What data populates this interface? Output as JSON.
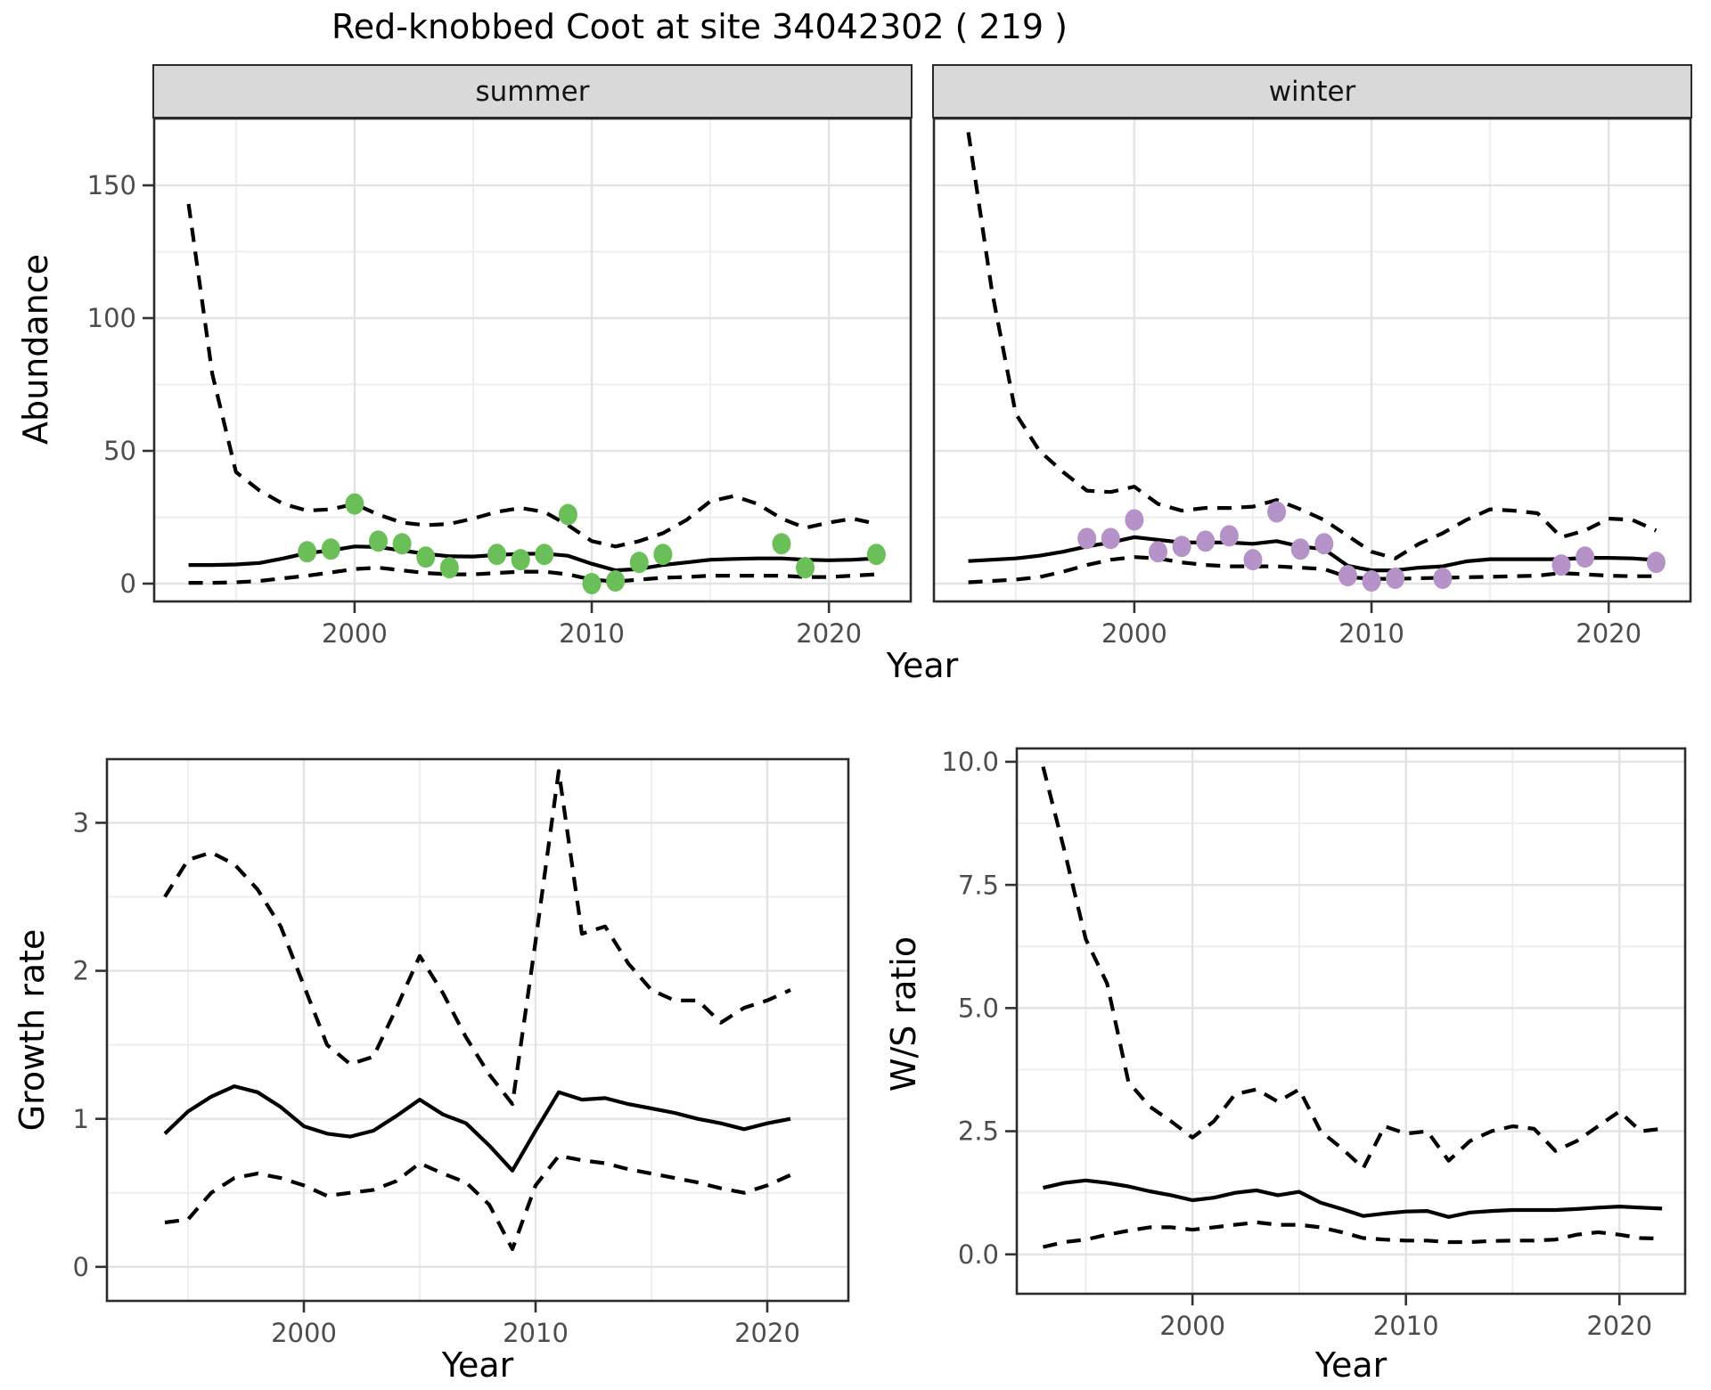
{
  "title": "Red-knobbed Coot at site 34042302 ( 219 )",
  "facets": [
    {
      "label": "summer"
    },
    {
      "label": "winter"
    }
  ],
  "axes": {
    "abundance_y_label": "Abundance",
    "top_x_label": "Year",
    "growth_y_label": "Growth rate",
    "growth_x_label": "Year",
    "ws_y_label": "W/S ratio",
    "ws_x_label": "Year"
  },
  "colors": {
    "summer_points": "#6bbf59",
    "winter_points": "#b592c8",
    "line": "#000000",
    "panel_border": "#2b2b2b",
    "grid_major": "#e3e3e3",
    "grid_minor": "#eeeeee",
    "strip_bg": "#d9d9d9",
    "tick_text": "#4d4d4d"
  },
  "chart_data": [
    {
      "id": "abundance_summer",
      "type": "line",
      "facet": "summer",
      "x_label": "Year",
      "y_label": "Abundance",
      "years": [
        1993,
        1994,
        1995,
        1996,
        1997,
        1998,
        1999,
        2000,
        2001,
        2002,
        2003,
        2004,
        2005,
        2006,
        2007,
        2008,
        2009,
        2010,
        2011,
        2012,
        2013,
        2014,
        2015,
        2016,
        2017,
        2018,
        2019,
        2020,
        2021,
        2022
      ],
      "series": [
        {
          "name": "upper_95ci",
          "style": "dashed",
          "values": [
            143,
            79,
            42,
            35,
            30,
            27.5,
            28,
            30,
            26,
            23,
            22,
            22.5,
            24.5,
            27,
            28.5,
            27,
            22,
            16,
            14,
            16,
            19,
            24,
            31,
            33,
            30,
            24.5,
            21,
            23,
            24.5,
            22.5
          ]
        },
        {
          "name": "mean",
          "style": "solid",
          "values": [
            7,
            7,
            7.2,
            7.8,
            9.5,
            11.5,
            12.5,
            14,
            13.8,
            12.5,
            11.2,
            10.3,
            10.2,
            10.8,
            11.2,
            11.3,
            10.5,
            7.5,
            5,
            5.5,
            7,
            8,
            9,
            9.3,
            9.5,
            9.5,
            9,
            8.8,
            9,
            9.5
          ]
        },
        {
          "name": "lower_95ci",
          "style": "dashed",
          "values": [
            0.3,
            0.3,
            0.5,
            1,
            2,
            3,
            4.2,
            5.5,
            6,
            5,
            4,
            3.5,
            3.5,
            4,
            4.5,
            4.5,
            3.5,
            1.5,
            0.8,
            1.5,
            2.2,
            2.5,
            3,
            3,
            3,
            3,
            2.5,
            2.5,
            3,
            3.5
          ]
        }
      ],
      "points": {
        "name": "observed_counts",
        "color": "#6bbf59",
        "data": [
          [
            1998,
            12
          ],
          [
            1999,
            13
          ],
          [
            2000,
            30
          ],
          [
            2001,
            16
          ],
          [
            2002,
            15
          ],
          [
            2003,
            10
          ],
          [
            2004,
            6
          ],
          [
            2006,
            11
          ],
          [
            2007,
            9
          ],
          [
            2008,
            11
          ],
          [
            2009,
            26
          ],
          [
            2010,
            0
          ],
          [
            2011,
            1
          ],
          [
            2012,
            8
          ],
          [
            2013,
            11
          ],
          [
            2018,
            15
          ],
          [
            2019,
            6
          ],
          [
            2022,
            11
          ]
        ]
      },
      "x_ticks": [
        {
          "v": 2000,
          "label": "2000"
        },
        {
          "v": 2010,
          "label": "2010"
        },
        {
          "v": 2020,
          "label": "2020"
        }
      ],
      "x_minor": [
        1995,
        2005,
        2015
      ],
      "y_ticks": [
        {
          "v": 0,
          "label": "0"
        },
        {
          "v": 50,
          "label": "50"
        },
        {
          "v": 100,
          "label": "100"
        },
        {
          "v": 150,
          "label": "150"
        }
      ],
      "y_minor": [
        25,
        75,
        125,
        175
      ],
      "xlim": [
        1991.55,
        2023.45
      ],
      "ylim": [
        -6.71,
        175.17
      ],
      "show_y_tick_labels": true
    },
    {
      "id": "abundance_winter",
      "type": "line",
      "facet": "winter",
      "x_label": "Year",
      "y_label": "Abundance",
      "years": [
        1993,
        1994,
        1995,
        1996,
        1997,
        1998,
        1999,
        2000,
        2001,
        2002,
        2003,
        2004,
        2005,
        2006,
        2007,
        2008,
        2009,
        2010,
        2011,
        2012,
        2013,
        2014,
        2015,
        2016,
        2017,
        2018,
        2019,
        2020,
        2021,
        2022
      ],
      "series": [
        {
          "name": "upper_95ci",
          "style": "dashed",
          "values": [
            170,
            110,
            64,
            50,
            42,
            35,
            34.5,
            36.5,
            30,
            27.5,
            28.5,
            28.5,
            29,
            31.5,
            28,
            24,
            18,
            12,
            9.5,
            15,
            19,
            24,
            28,
            27.5,
            26.5,
            17.5,
            20,
            24.5,
            24,
            20
          ]
        },
        {
          "name": "mean",
          "style": "solid",
          "values": [
            8.5,
            9,
            9.5,
            10.5,
            12,
            14,
            15.5,
            17.5,
            16.5,
            15.5,
            15.5,
            15.5,
            15,
            16,
            14,
            13,
            6.7,
            5,
            5,
            6,
            6.5,
            8.4,
            9.2,
            9.2,
            9.2,
            9.2,
            9.7,
            9.7,
            9.5,
            8.9
          ]
        },
        {
          "name": "lower_95ci",
          "style": "dashed",
          "values": [
            0.5,
            1,
            1.5,
            2.5,
            4.5,
            7,
            9,
            10,
            9.5,
            8,
            7,
            6.5,
            6.5,
            6.5,
            6,
            5.5,
            2.5,
            1.8,
            1.8,
            2,
            2.2,
            2.4,
            2.6,
            2.8,
            3,
            4,
            3.5,
            3,
            2.8,
            2.8
          ]
        }
      ],
      "points": {
        "name": "observed_counts",
        "color": "#b592c8",
        "data": [
          [
            1998,
            17
          ],
          [
            1999,
            17
          ],
          [
            2000,
            24
          ],
          [
            2001,
            12
          ],
          [
            2002,
            14
          ],
          [
            2003,
            16
          ],
          [
            2004,
            18
          ],
          [
            2005,
            9
          ],
          [
            2006,
            27
          ],
          [
            2007,
            13
          ],
          [
            2008,
            15
          ],
          [
            2009,
            3
          ],
          [
            2010,
            1
          ],
          [
            2011,
            2
          ],
          [
            2013,
            2
          ],
          [
            2018,
            7
          ],
          [
            2019,
            10
          ],
          [
            2022,
            8
          ]
        ]
      },
      "x_ticks": [
        {
          "v": 2000,
          "label": "2000"
        },
        {
          "v": 2010,
          "label": "2010"
        },
        {
          "v": 2020,
          "label": "2020"
        }
      ],
      "x_minor": [
        1995,
        2005,
        2015
      ],
      "y_ticks": [
        {
          "v": 0,
          "label": "0"
        },
        {
          "v": 50,
          "label": "50"
        },
        {
          "v": 100,
          "label": "100"
        },
        {
          "v": 150,
          "label": "150"
        }
      ],
      "y_minor": [
        25,
        75,
        125,
        175
      ],
      "xlim": [
        1991.55,
        2023.45
      ],
      "ylim": [
        -6.71,
        175.17
      ],
      "show_y_tick_labels": false
    },
    {
      "id": "growth_rate",
      "type": "line",
      "x_label": "Year",
      "y_label": "Growth rate",
      "years": [
        1994,
        1995,
        1996,
        1997,
        1998,
        1999,
        2000,
        2001,
        2002,
        2003,
        2004,
        2005,
        2006,
        2007,
        2008,
        2009,
        2010,
        2011,
        2012,
        2013,
        2014,
        2015,
        2016,
        2017,
        2018,
        2019,
        2020,
        2021
      ],
      "series": [
        {
          "name": "upper_95ci",
          "style": "dashed",
          "values": [
            2.5,
            2.75,
            2.8,
            2.72,
            2.55,
            2.3,
            1.9,
            1.5,
            1.37,
            1.42,
            1.75,
            2.1,
            1.85,
            1.55,
            1.3,
            1.1,
            2.2,
            3.35,
            2.25,
            2.3,
            2.05,
            1.87,
            1.8,
            1.8,
            1.65,
            1.75,
            1.8,
            1.87
          ]
        },
        {
          "name": "mean",
          "style": "solid",
          "values": [
            0.9,
            1.05,
            1.15,
            1.22,
            1.18,
            1.08,
            0.95,
            0.9,
            0.88,
            0.92,
            1.02,
            1.13,
            1.03,
            0.97,
            0.82,
            0.65,
            0.92,
            1.18,
            1.13,
            1.14,
            1.1,
            1.07,
            1.04,
            1.0,
            0.97,
            0.93,
            0.97,
            1.0
          ]
        },
        {
          "name": "lower_95ci",
          "style": "dashed",
          "values": [
            0.3,
            0.32,
            0.5,
            0.6,
            0.63,
            0.6,
            0.55,
            0.48,
            0.5,
            0.52,
            0.58,
            0.7,
            0.63,
            0.57,
            0.42,
            0.12,
            0.55,
            0.75,
            0.72,
            0.7,
            0.66,
            0.63,
            0.6,
            0.57,
            0.53,
            0.5,
            0.55,
            0.62
          ]
        }
      ],
      "points": null,
      "x_ticks": [
        {
          "v": 2000,
          "label": "2000"
        },
        {
          "v": 2010,
          "label": "2010"
        },
        {
          "v": 2020,
          "label": "2020"
        }
      ],
      "x_minor": [
        1995,
        2005,
        2015
      ],
      "y_ticks": [
        {
          "v": 0,
          "label": "0"
        },
        {
          "v": 1,
          "label": "1"
        },
        {
          "v": 2,
          "label": "2"
        },
        {
          "v": 3,
          "label": "3"
        }
      ],
      "y_minor": [
        0.5,
        1.5,
        2.5
      ],
      "xlim": [
        1991.5,
        2023.5
      ],
      "ylim": [
        -0.23,
        3.43
      ],
      "show_y_tick_labels": true
    },
    {
      "id": "ws_ratio",
      "type": "line",
      "x_label": "Year",
      "y_label": "W/S ratio",
      "years": [
        1993,
        1994,
        1995,
        1996,
        1997,
        1998,
        1999,
        2000,
        2001,
        2002,
        2003,
        2004,
        2005,
        2006,
        2007,
        2008,
        2009,
        2010,
        2011,
        2012,
        2013,
        2014,
        2015,
        2016,
        2017,
        2018,
        2019,
        2020,
        2021,
        2022
      ],
      "series": [
        {
          "name": "upper_95ci",
          "style": "dashed",
          "values": [
            9.9,
            8.2,
            6.4,
            5.5,
            3.5,
            3.0,
            2.7,
            2.37,
            2.7,
            3.25,
            3.35,
            3.1,
            3.35,
            2.5,
            2.15,
            1.75,
            2.6,
            2.45,
            2.5,
            1.9,
            2.3,
            2.5,
            2.6,
            2.55,
            2.1,
            2.3,
            2.6,
            2.9,
            2.5,
            2.55
          ]
        },
        {
          "name": "mean",
          "style": "solid",
          "values": [
            1.35,
            1.45,
            1.5,
            1.45,
            1.38,
            1.28,
            1.2,
            1.1,
            1.15,
            1.25,
            1.3,
            1.2,
            1.27,
            1.05,
            0.92,
            0.78,
            0.83,
            0.87,
            0.88,
            0.76,
            0.85,
            0.88,
            0.9,
            0.9,
            0.9,
            0.92,
            0.95,
            0.97,
            0.95,
            0.93
          ]
        },
        {
          "name": "lower_95ci",
          "style": "dashed",
          "values": [
            0.15,
            0.25,
            0.3,
            0.4,
            0.48,
            0.55,
            0.55,
            0.5,
            0.55,
            0.6,
            0.65,
            0.6,
            0.6,
            0.55,
            0.45,
            0.33,
            0.3,
            0.28,
            0.28,
            0.25,
            0.25,
            0.27,
            0.28,
            0.28,
            0.3,
            0.4,
            0.45,
            0.4,
            0.33,
            0.32
          ]
        }
      ],
      "points": null,
      "x_ticks": [
        {
          "v": 2000,
          "label": "2000"
        },
        {
          "v": 2010,
          "label": "2010"
        },
        {
          "v": 2020,
          "label": "2020"
        }
      ],
      "x_minor": [
        1995,
        2005,
        2015
      ],
      "y_ticks": [
        {
          "v": 0,
          "label": "0.0"
        },
        {
          "v": 2.5,
          "label": "2.5"
        },
        {
          "v": 5,
          "label": "5.0"
        },
        {
          "v": 7.5,
          "label": "7.5"
        },
        {
          "v": 10,
          "label": "10.0"
        }
      ],
      "y_minor": [
        1.25,
        3.75,
        6.25,
        8.75
      ],
      "xlim": [
        1991.77,
        2023.08
      ],
      "ylim": [
        -0.8,
        10.27
      ],
      "show_y_tick_labels": true
    }
  ]
}
